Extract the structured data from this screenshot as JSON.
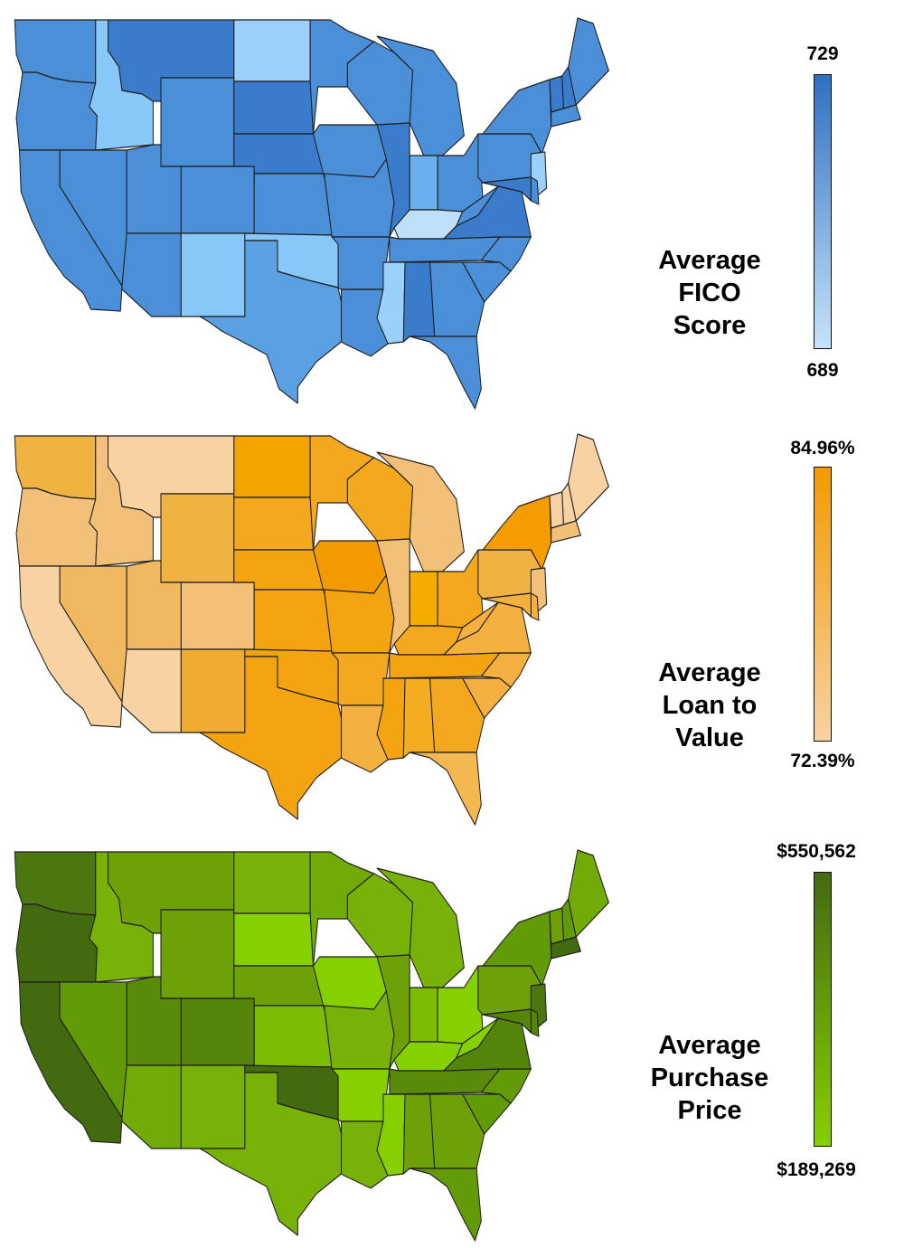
{
  "panels": [
    {
      "id": "fico",
      "caption": [
        "Average",
        "FICO",
        "Score"
      ],
      "max_label": "729",
      "min_label": "689",
      "scale": {
        "max": 729,
        "min": 689,
        "color_high": "#2f6fc2",
        "color_low": "#c6e4fa"
      },
      "state_colors": {
        "WA": "#4a8fd8",
        "OR": "#4a8fd8",
        "CA": "#4a8fd8",
        "ID": "#88c8f8",
        "MT": "#3a7ccb",
        "WY": "#4a8fd8",
        "NV": "#4a8fd8",
        "UT": "#4a8fd8",
        "CO": "#4a8fd8",
        "AZ": "#4a8fd8",
        "NM": "#88c8f8",
        "ND": "#9bd0fa",
        "SD": "#3a7ccb",
        "NE": "#3a7ccb",
        "KS": "#4a8fd8",
        "OK": "#88c8f8",
        "TX": "#5aa0e2",
        "MN": "#4a8fd8",
        "IA": "#4a8fd8",
        "MO": "#4a8fd8",
        "AR": "#4a8fd8",
        "LA": "#4a8fd8",
        "WI": "#4a8fd8",
        "MI": "#4a8fd8",
        "IL": "#3a7ccb",
        "IN": "#6ab0ec",
        "OH": "#4a8fd8",
        "KY": "#bfe0f8",
        "TN": "#4a8fd8",
        "MS": "#9bd0fa",
        "AL": "#3a7ccb",
        "GA": "#4a8fd8",
        "FL": "#4a8fd8",
        "SC": "#4a8fd8",
        "NC": "#4a8fd8",
        "VA": "#3a7ccb",
        "WV": "#4a8fd8",
        "PA": "#4a8fd8",
        "NY": "#4a8fd8",
        "NJ": "#9bd0fa",
        "ME": "#4a8fd8",
        "VT": "#3a7ccb",
        "NH": "#3a7ccb",
        "MA": "#4a8fd8",
        "MD": "#3a7ccb",
        "DE": "#4a8fd8"
      }
    },
    {
      "id": "ltv",
      "caption": [
        "Average",
        "Loan to",
        "Value"
      ],
      "max_label": "84.96%",
      "min_label": "72.39%",
      "scale": {
        "max": 84.96,
        "min": 72.39,
        "color_high": "#f39a00",
        "color_low": "#f8d2a2"
      },
      "state_colors": {
        "WA": "#f0b240",
        "OR": "#f2c078",
        "CA": "#f8d2a2",
        "ID": "#f2c078",
        "MT": "#f8d2a2",
        "WY": "#f0b240",
        "NV": "#f0b860",
        "UT": "#f0b860",
        "CO": "#f2c078",
        "AZ": "#f8d2a2",
        "NM": "#f0ac30",
        "ND": "#f4a400",
        "SD": "#f4a820",
        "NE": "#f4a410",
        "KS": "#f4a410",
        "OK": "#f4a410",
        "TX": "#f4a410",
        "MN": "#f4a820",
        "IA": "#f39a00",
        "MO": "#f4a410",
        "AR": "#f4a820",
        "LA": "#f4b040",
        "WI": "#f4a820",
        "MI": "#f2c078",
        "IL": "#f2c078",
        "IN": "#f4ac00",
        "OH": "#f4a820",
        "KY": "#f4a820",
        "TN": "#f4a410",
        "MS": "#f4a410",
        "AL": "#f4ac20",
        "GA": "#f4a820",
        "FL": "#f4b850",
        "SC": "#f4b040",
        "NC": "#f4b040",
        "VA": "#f4b040",
        "WV": "#f4b040",
        "PA": "#f0b240",
        "NY": "#f49c00",
        "NJ": "#f2c078",
        "ME": "#f8d2a2",
        "VT": "#f8d2a2",
        "NH": "#f8d2a2",
        "MA": "#f2c078",
        "MD": "#f4b040",
        "DE": "#f4b040"
      }
    },
    {
      "id": "price",
      "caption": [
        "Average",
        "Purchase",
        "Price"
      ],
      "max_label": "$550,562",
      "min_label": "$189,269",
      "scale": {
        "max": 550562,
        "min": 189269,
        "color_high": "#446a10",
        "color_low": "#86d000"
      },
      "state_colors": {
        "WA": "#4c7610",
        "OR": "#446a10",
        "CA": "#446a10",
        "ID": "#78b208",
        "MT": "#6ea008",
        "WY": "#6ea008",
        "NV": "#629a08",
        "UT": "#5a8a0a",
        "CO": "#55840a",
        "AZ": "#72aa08",
        "NM": "#78b208",
        "ND": "#78b208",
        "SD": "#86d000",
        "NE": "#6ea008",
        "KS": "#7cbc04",
        "OK": "#446a10",
        "TX": "#78b208",
        "MN": "#72aa08",
        "IA": "#86d000",
        "MO": "#78b208",
        "AR": "#86d000",
        "LA": "#78b208",
        "WI": "#78b208",
        "MI": "#78b208",
        "IL": "#6ea008",
        "IN": "#7cbc04",
        "OH": "#86d000",
        "KY": "#86d000",
        "TN": "#5a8a0a",
        "MS": "#86d000",
        "AL": "#6ea008",
        "GA": "#6ea008",
        "FL": "#629a08",
        "SC": "#629a08",
        "NC": "#629a08",
        "VA": "#55840a",
        "WV": "#86d000",
        "PA": "#6ea008",
        "NY": "#629a08",
        "NJ": "#4c7610",
        "ME": "#72aa08",
        "VT": "#6ea008",
        "NH": "#629a08",
        "MA": "#446a10",
        "MD": "#55840a",
        "DE": "#55840a"
      }
    }
  ]
}
